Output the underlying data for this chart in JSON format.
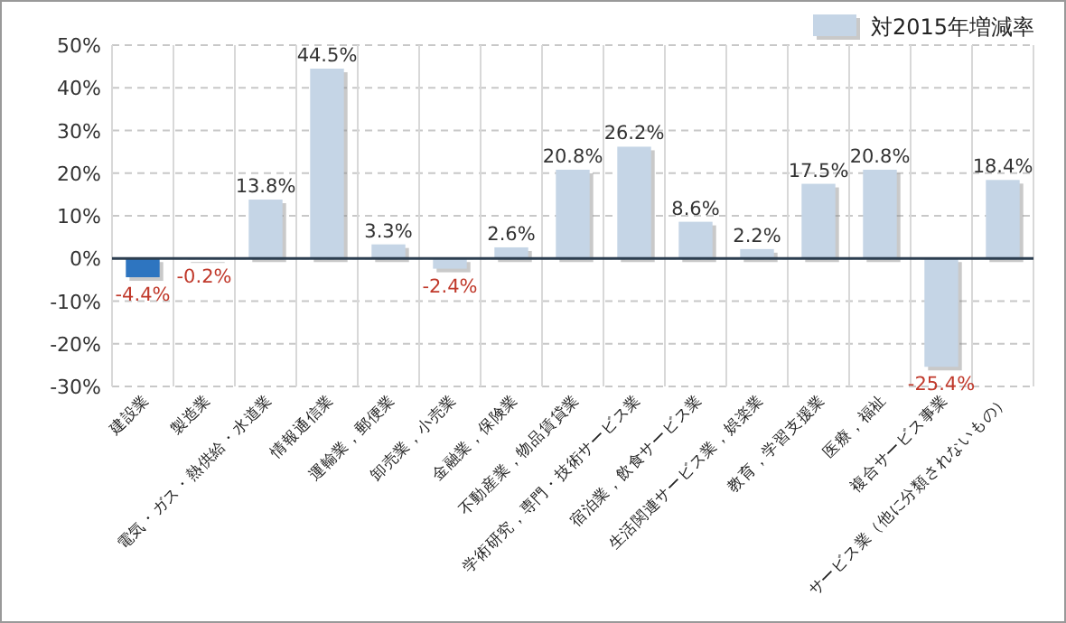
{
  "chart_data": {
    "type": "bar",
    "categories": [
      "建設業",
      "製造業",
      "電気・ガス・熱供給・水道業",
      "情報通信業",
      "運輸業，郵便業",
      "卸売業，小売業",
      "金融業，保険業",
      "不動産業，物品賃貸業",
      "学術研究，専門・技術サービス業",
      "宿泊業，飲食サービス業",
      "生活関連サービス業，娯楽業",
      "教育，学習支援業",
      "医療，福祉",
      "複合サービス事業",
      "サービス業（他に分類されないもの）"
    ],
    "series": [
      {
        "name": "対2015年増減率",
        "color": "#c5d5e6",
        "values": [
          -4.4,
          -0.2,
          13.8,
          44.5,
          3.3,
          -2.4,
          2.6,
          20.8,
          26.2,
          8.6,
          2.2,
          17.5,
          20.8,
          -25.4,
          18.4
        ],
        "colors": [
          "#2e75c0",
          "#c5d5e6",
          "#c5d5e6",
          "#c5d5e6",
          "#c5d5e6",
          "#c5d5e6",
          "#c5d5e6",
          "#c5d5e6",
          "#c5d5e6",
          "#c5d5e6",
          "#c5d5e6",
          "#c5d5e6",
          "#c5d5e6",
          "#c5d5e6",
          "#c5d5e6"
        ]
      }
    ],
    "ylim": [
      -30,
      50
    ],
    "yticks": [
      {
        "value": -30,
        "label": "-30%"
      },
      {
        "value": -20,
        "label": "-20%"
      },
      {
        "value": -10,
        "label": "-10%"
      },
      {
        "value": 0,
        "label": "0%"
      },
      {
        "value": 10,
        "label": "10%"
      },
      {
        "value": 20,
        "label": "20%"
      },
      {
        "value": 30,
        "label": "30%"
      },
      {
        "value": 40,
        "label": "40%"
      },
      {
        "value": 50,
        "label": "50%"
      }
    ],
    "value_labels": [
      "-4.4%",
      "-0.2%",
      "13.8%",
      "44.5%",
      "3.3%",
      "-2.4%",
      "2.6%",
      "20.8%",
      "26.2%",
      "8.6%",
      "2.2%",
      "17.5%",
      "20.8%",
      "-25.4%",
      "18.4%"
    ],
    "grid": true,
    "legend": "top right"
  }
}
